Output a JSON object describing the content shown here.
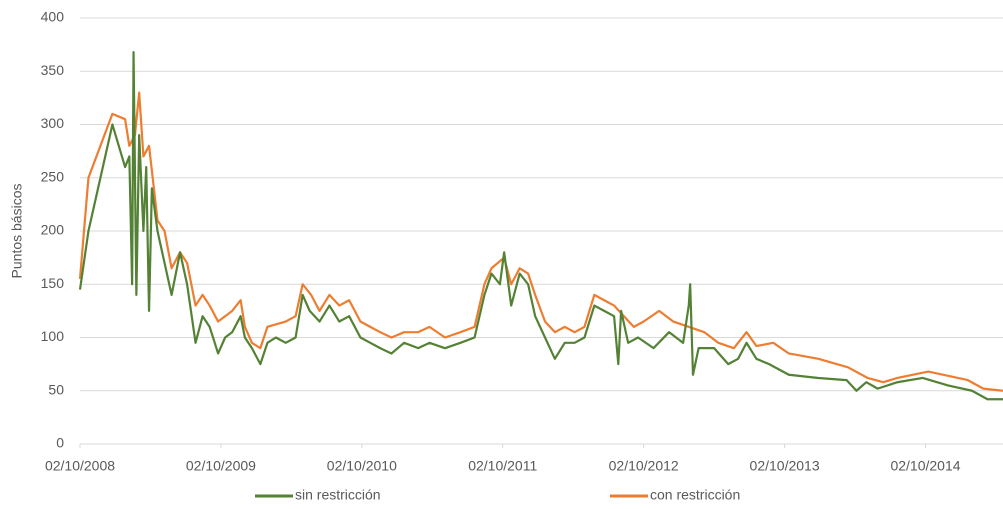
{
  "chart_data": {
    "type": "line",
    "y_label": "Puntos básicos",
    "xlim": [
      2008.75,
      2015.3
    ],
    "xticks": [
      {
        "value": 2008.75,
        "label": "02/10/2008"
      },
      {
        "value": 2009.75,
        "label": "02/10/2009"
      },
      {
        "value": 2010.75,
        "label": "02/10/2010"
      },
      {
        "value": 2011.75,
        "label": "02/10/2011"
      },
      {
        "value": 2012.75,
        "label": "02/10/2012"
      },
      {
        "value": 2013.75,
        "label": "02/10/2013"
      },
      {
        "value": 2014.75,
        "label": "02/10/2014"
      }
    ],
    "ylim": [
      0,
      400
    ],
    "yticks": [
      0,
      50,
      100,
      150,
      200,
      250,
      300,
      350,
      400
    ],
    "grid": true,
    "legend": "bottom",
    "series": [
      {
        "name": "sin restricción",
        "color": "#548235",
        "x": [
          2008.75,
          2008.81,
          2008.98,
          2009.07,
          2009.1,
          2009.12,
          2009.13,
          2009.15,
          2009.17,
          2009.2,
          2009.22,
          2009.24,
          2009.26,
          2009.3,
          2009.35,
          2009.4,
          2009.46,
          2009.51,
          2009.57,
          2009.62,
          2009.67,
          2009.73,
          2009.78,
          2009.83,
          2009.89,
          2009.92,
          2009.97,
          2010.03,
          2010.08,
          2010.14,
          2010.21,
          2010.28,
          2010.33,
          2010.38,
          2010.45,
          2010.52,
          2010.59,
          2010.66,
          2010.74,
          2010.81,
          2010.88,
          2010.96,
          2011.05,
          2011.15,
          2011.23,
          2011.34,
          2011.45,
          2011.55,
          2011.62,
          2011.67,
          2011.73,
          2011.76,
          2011.81,
          2011.87,
          2011.93,
          2011.98,
          2012.05,
          2012.12,
          2012.19,
          2012.26,
          2012.33,
          2012.4,
          2012.47,
          2012.54,
          2012.57,
          2012.59,
          2012.64,
          2012.71,
          2012.82,
          2012.93,
          2013.03,
          2013.07,
          2013.08,
          2013.1,
          2013.14,
          2013.25,
          2013.35,
          2013.42,
          2013.48,
          2013.55,
          2013.64,
          2013.78,
          2013.99,
          2014.19,
          2014.26,
          2014.33,
          2014.41,
          2014.55,
          2014.73,
          2014.91,
          2015.08,
          2015.19,
          2015.3
        ],
        "values": [
          145,
          200,
          300,
          260,
          270,
          150,
          368,
          140,
          290,
          200,
          260,
          125,
          240,
          200,
          170,
          140,
          180,
          150,
          95,
          120,
          110,
          85,
          100,
          105,
          120,
          100,
          90,
          75,
          95,
          100,
          95,
          100,
          140,
          125,
          115,
          130,
          115,
          120,
          100,
          95,
          90,
          85,
          95,
          90,
          95,
          90,
          95,
          100,
          140,
          160,
          150,
          180,
          130,
          160,
          150,
          120,
          100,
          80,
          95,
          95,
          100,
          130,
          125,
          120,
          75,
          125,
          95,
          100,
          90,
          105,
          95,
          130,
          150,
          65,
          90,
          90,
          75,
          80,
          95,
          80,
          75,
          65,
          62,
          60,
          50,
          58,
          52,
          58,
          62,
          55,
          50,
          42,
          42
        ]
      },
      {
        "name": "con restricción",
        "color": "#ed7d31",
        "x": [
          2008.75,
          2008.81,
          2008.98,
          2009.07,
          2009.1,
          2009.14,
          2009.17,
          2009.2,
          2009.24,
          2009.3,
          2009.35,
          2009.4,
          2009.46,
          2009.51,
          2009.57,
          2009.62,
          2009.67,
          2009.73,
          2009.78,
          2009.83,
          2009.89,
          2009.92,
          2009.97,
          2010.03,
          2010.08,
          2010.21,
          2010.28,
          2010.33,
          2010.39,
          2010.45,
          2010.52,
          2010.59,
          2010.66,
          2010.74,
          2010.81,
          2010.88,
          2010.96,
          2011.05,
          2011.15,
          2011.23,
          2011.34,
          2011.45,
          2011.55,
          2011.62,
          2011.67,
          2011.76,
          2011.81,
          2011.87,
          2011.93,
          2011.98,
          2012.05,
          2012.12,
          2012.19,
          2012.26,
          2012.33,
          2012.4,
          2012.47,
          2012.54,
          2012.61,
          2012.68,
          2012.75,
          2012.86,
          2012.96,
          2013.07,
          2013.18,
          2013.28,
          2013.39,
          2013.48,
          2013.55,
          2013.67,
          2013.78,
          2013.99,
          2014.2,
          2014.34,
          2014.45,
          2014.55,
          2014.77,
          2015.05,
          2015.16,
          2015.3
        ],
        "values": [
          155,
          250,
          310,
          305,
          280,
          290,
          330,
          270,
          280,
          210,
          200,
          165,
          180,
          170,
          130,
          140,
          130,
          115,
          120,
          125,
          135,
          110,
          95,
          90,
          110,
          115,
          120,
          150,
          140,
          125,
          140,
          130,
          135,
          115,
          110,
          105,
          100,
          105,
          105,
          110,
          100,
          105,
          110,
          150,
          165,
          175,
          150,
          165,
          160,
          140,
          115,
          105,
          110,
          105,
          110,
          140,
          135,
          130,
          120,
          110,
          115,
          125,
          115,
          110,
          105,
          95,
          90,
          105,
          92,
          95,
          85,
          80,
          72,
          62,
          58,
          62,
          68,
          60,
          52,
          50
        ]
      }
    ]
  }
}
